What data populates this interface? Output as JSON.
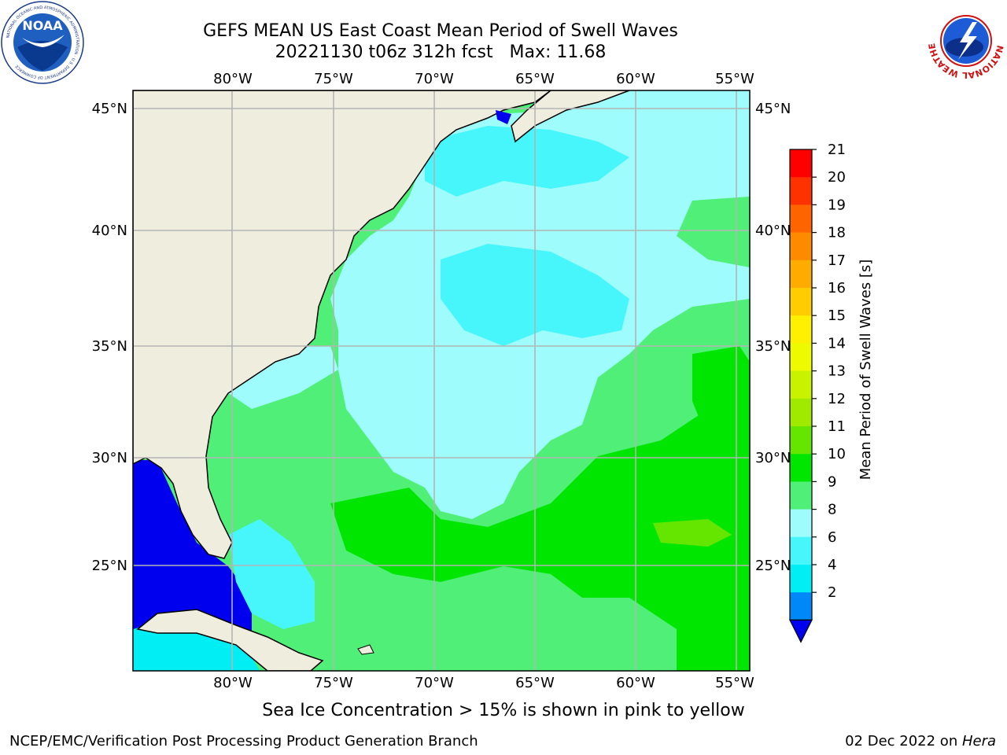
{
  "title": {
    "line1": "GEFS MEAN US East Coast Mean Period of Swell Waves",
    "line2": "20221130 t06z 312h fcst   Max: 11.68"
  },
  "map": {
    "lon_labels": [
      "80°W",
      "75°W",
      "70°W",
      "65°W",
      "60°W",
      "55°W"
    ],
    "lat_labels": [
      "45°N",
      "40°N",
      "35°N",
      "30°N",
      "25°N"
    ],
    "land_color": "#efedde",
    "grid_color": "#b4b4b4"
  },
  "colorbar": {
    "label": "Mean Period of Swell Waves [s]",
    "ticks": [
      "21",
      "20",
      "19",
      "18",
      "17",
      "16",
      "15",
      "14",
      "13",
      "12",
      "11",
      "10",
      "9",
      "8",
      "6",
      "4",
      "2"
    ],
    "colors": [
      "#fe0000",
      "#fe3200",
      "#fe6400",
      "#fe8a00",
      "#feac00",
      "#fecc00",
      "#fef000",
      "#eefa00",
      "#c8f200",
      "#a0ea00",
      "#64e600",
      "#00e600",
      "#50f078",
      "#9ffcfc",
      "#46f6fa",
      "#00eef4",
      "#0088f8"
    ],
    "extend_color": "#0000ee"
  },
  "sea_ice_note": "Sea Ice Concentration > 15% is shown in pink to yellow",
  "footer": {
    "left": "NCEP/EMC/Verification Post Processing Product Generation Branch",
    "date": "02 Dec 2022 on ",
    "host": "Hera"
  },
  "logos": {
    "noaa": "NOAA",
    "nws_ring": "NATIONAL WEATHER SERVICE"
  }
}
